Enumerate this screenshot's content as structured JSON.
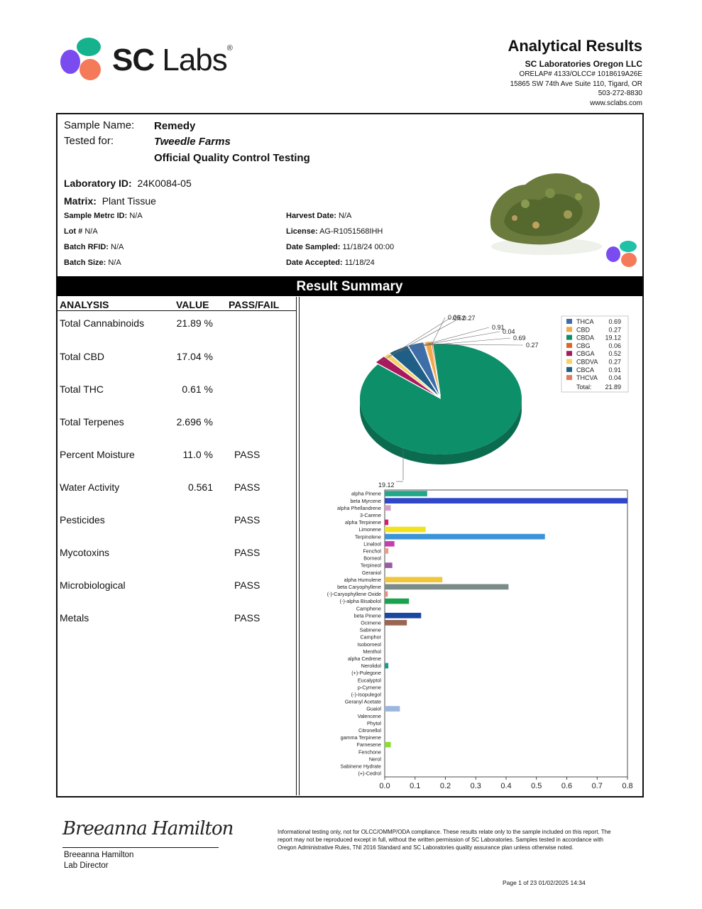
{
  "brand": {
    "name_bold": "SC",
    "name_light": "Labs",
    "reg": "®",
    "colors": [
      "#16b28e",
      "#7a4cf0",
      "#f47a5a",
      "#1fc2a6"
    ]
  },
  "header": {
    "title": "Analytical Results",
    "company": "SC Laboratories Oregon LLC",
    "license": "ORELAP# 4133/OLCC# 1018619A26E",
    "address": "15865 SW 74th Ave Suite 110, Tigard, OR",
    "phone": "503-272-8830",
    "website": "www.sclabs.com"
  },
  "sample": {
    "name_label": "Sample Name:",
    "name": "Remedy",
    "tested_for_label": "Tested for:",
    "tested_for": "Tweedle Farms",
    "test_type": "Official Quality Control Testing",
    "lab_id_label": "Laboratory ID:",
    "lab_id": "24K0084-05",
    "matrix_label": "Matrix:",
    "matrix": "Plant Tissue",
    "metrc_label": "Sample Metrc ID:",
    "metrc": "N/A",
    "lot_label": "Lot #",
    "lot": "N/A",
    "rfid_label": "Batch RFID:",
    "rfid": "N/A",
    "size_label": "Batch Size:",
    "size": "N/A",
    "harvest_label": "Harvest Date:",
    "harvest": "N/A",
    "license_label": "License:",
    "license": "AG-R1051568IHH",
    "sampled_label": "Date Sampled:",
    "sampled": "11/18/24  00:00",
    "accepted_label": "Date Accepted:",
    "accepted": "11/18/24"
  },
  "summary": {
    "banner": "Result Summary",
    "headers": [
      "ANALYSIS",
      "VALUE",
      "PASS/FAIL"
    ],
    "rows": [
      {
        "analysis": "Total Cannabinoids",
        "value": "21.89 %",
        "result": ""
      },
      {
        "analysis": "Total CBD",
        "value": "17.04 %",
        "result": ""
      },
      {
        "analysis": "Total THC",
        "value": "0.61 %",
        "result": ""
      },
      {
        "analysis": "Total Terpenes",
        "value": "2.696 %",
        "result": ""
      },
      {
        "analysis": "Percent Moisture",
        "value": "11.0 %",
        "result": "PASS"
      },
      {
        "analysis": "Water Activity",
        "value": "0.561",
        "result": "PASS"
      },
      {
        "analysis": "Pesticides",
        "value": "",
        "result": "PASS"
      },
      {
        "analysis": "Mycotoxins",
        "value": "",
        "result": "PASS"
      },
      {
        "analysis": "Microbiological",
        "value": "",
        "result": "PASS"
      },
      {
        "analysis": "Metals",
        "value": "",
        "result": "PASS"
      }
    ]
  },
  "chart_data": [
    {
      "type": "pie",
      "legend_position": "top-right",
      "categories": [
        "THCA",
        "CBD",
        "CBDA",
        "CBG",
        "CBGA",
        "CBDVA",
        "CBCA",
        "THCVA"
      ],
      "values": [
        0.69,
        0.27,
        19.12,
        0.06,
        0.52,
        0.27,
        0.91,
        0.04
      ],
      "value_labels": [
        "0.69",
        "0.27",
        "19.12",
        "0.06",
        "0.52",
        "0.27",
        "0.91",
        "0.04"
      ],
      "colors": [
        "#3d6ea8",
        "#f2a94a",
        "#0d8f69",
        "#e0642a",
        "#a8195e",
        "#f6d36a",
        "#1f5f86",
        "#e27a5c"
      ],
      "total_label": "Total:",
      "total": "21.89"
    },
    {
      "type": "bar",
      "orientation": "horizontal",
      "categories": [
        "alpha Pinene",
        "beta Myrcene",
        "alpha Phellandrene",
        "3-Carene",
        "alpha Terpinene",
        "Limonene",
        "Terpinolene",
        "Linalool",
        "Fenchol",
        "Borneol",
        "Terpineol",
        "Geraniol",
        "alpha Humulene",
        "beta Caryophyllene",
        "(-)-Caryophyllene Oxide",
        "(-)-alpha Bisabolol",
        "Camphene",
        "beta Pinene",
        "Ocimene",
        "Sabinene",
        "Camphor",
        "Isoborneol",
        "Menthol",
        "alpha Cedrene",
        "Nerolidol",
        "(+)-Pulegone",
        "Eucalyptol",
        "p-Cymene",
        "(-)-Isopulegol",
        "Geranyl Acetate",
        "Guaiol",
        "Valencene",
        "Phytol",
        "Citronellol",
        "gamma Terpinene",
        "Farnesene",
        "Fenchone",
        "Nerol",
        "Sabinene Hydrate",
        "(+)-Cedrol"
      ],
      "values": [
        0.14,
        0.8,
        0.02,
        0,
        0.012,
        0.135,
        0.528,
        0.032,
        0.012,
        0,
        0.025,
        0,
        0.19,
        0.408,
        0.01,
        0.08,
        0,
        0.12,
        0.073,
        0,
        0,
        0,
        0,
        0,
        0.012,
        0,
        0,
        0,
        0,
        0,
        0.05,
        0,
        0,
        0,
        0,
        0.02,
        0,
        0,
        0,
        0
      ],
      "colors": [
        "#22a789",
        "#3047c7",
        "#d6a0c8",
        "#cccccc",
        "#d81e6a",
        "#f2e21e",
        "#3b94d8",
        "#c43fae",
        "#f29a7d",
        "#cccccc",
        "#9b5aa6",
        "#cccccc",
        "#f0c73a",
        "#7a8c88",
        "#e78f7f",
        "#1aa24e",
        "#cccccc",
        "#1a47a0",
        "#9a6552",
        "#cccccc",
        "#cccccc",
        "#cccccc",
        "#cccccc",
        "#cccccc",
        "#1a9b8c",
        "#cccccc",
        "#cccccc",
        "#cccccc",
        "#cccccc",
        "#cccccc",
        "#9bb7db",
        "#cccccc",
        "#cccccc",
        "#cccccc",
        "#cccccc",
        "#8ddc32",
        "#cccccc",
        "#cccccc",
        "#cccccc",
        "#cccccc"
      ],
      "xlim": [
        0,
        0.8
      ],
      "xticks": [
        "0.0",
        "0.1",
        "0.2",
        "0.3",
        "0.4",
        "0.5",
        "0.6",
        "0.7",
        "0.8"
      ]
    }
  ],
  "footer": {
    "signature": "Breeanna Hamilton",
    "signer_name": "Breeanna Hamilton",
    "signer_title": "Lab Director",
    "disclaimer": "Informational testing only, not for OLCC/OMMP/ODA compliance. These results relate only to the sample included on this report. The report may not be reproduced except in full, without the written permission of SC Laboratories. Samples tested in accordance with Oregon Administrative Rules, TNI 2016 Standard and SC Laboratories quality assurance plan unless otherwise noted.",
    "page": "Page 1 of 23  01/02/2025 14:34"
  }
}
